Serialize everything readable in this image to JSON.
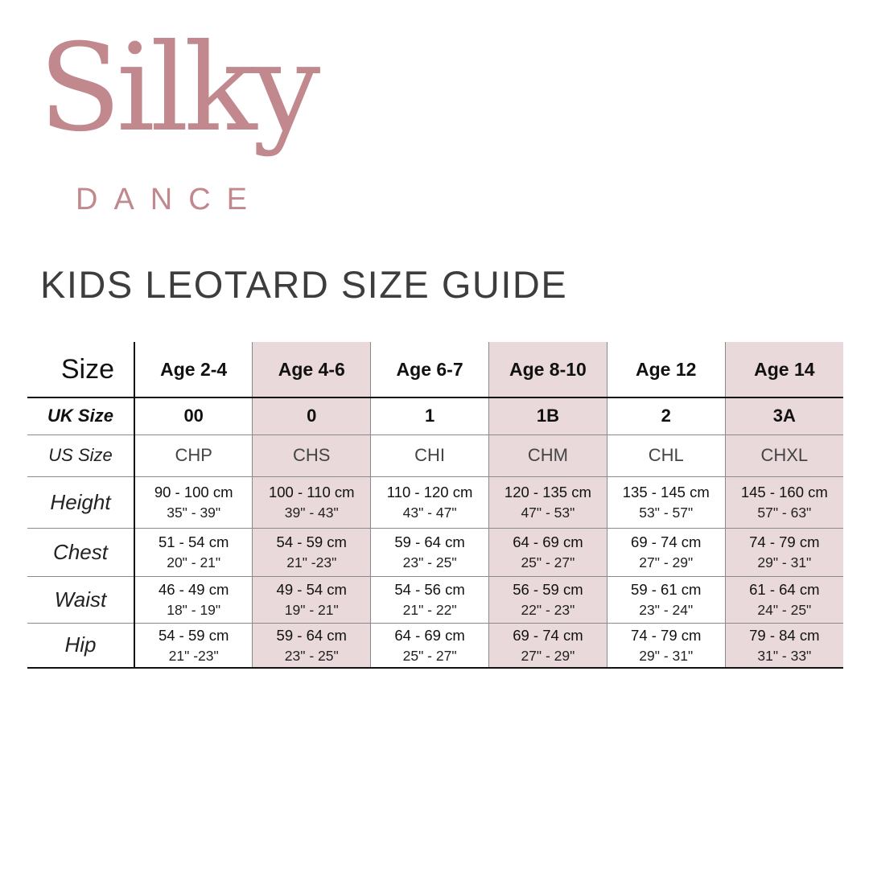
{
  "brand": {
    "name": "Silky",
    "sub": "DANCE",
    "color": "#c1888d"
  },
  "title": "KIDS LEOTARD SIZE GUIDE",
  "table": {
    "corner_label": "Size",
    "columns": [
      "Age 2-4",
      "Age 4-6",
      "Age 6-7",
      "Age 8-10",
      "Age 12",
      "Age 14"
    ],
    "highlight_color": "#ead9da",
    "uk_size": {
      "label": "UK Size",
      "values": [
        "00",
        "0",
        "1",
        "1B",
        "2",
        "3A"
      ]
    },
    "us_size": {
      "label": "US Size",
      "values": [
        "CHP",
        "CHS",
        "CHI",
        "CHM",
        "CHL",
        "CHXL"
      ]
    },
    "height": {
      "label": "Height",
      "cm": [
        "90 - 100 cm",
        "100 - 110 cm",
        "110 - 120 cm",
        "120 - 135 cm",
        "135 - 145 cm",
        "145 - 160 cm"
      ],
      "in": [
        "35\" - 39\"",
        "39\" - 43\"",
        "43\" - 47\"",
        "47\" - 53\"",
        "53\" - 57\"",
        "57\" - 63\""
      ]
    },
    "chest": {
      "label": "Chest",
      "cm": [
        "51 - 54 cm",
        "54 - 59 cm",
        "59 - 64 cm",
        "64 - 69 cm",
        "69 - 74 cm",
        "74 - 79 cm"
      ],
      "in": [
        "20\" - 21\"",
        "21\" -23\"",
        "23\" - 25\"",
        "25\" - 27\"",
        "27\" - 29\"",
        "29\" - 31\""
      ]
    },
    "waist": {
      "label": "Waist",
      "cm": [
        "46 - 49 cm",
        "49 - 54 cm",
        "54 - 56 cm",
        "56 - 59 cm",
        "59 - 61 cm",
        "61 - 64 cm"
      ],
      "in": [
        "18\" - 19\"",
        "19\" - 21\"",
        "21\" - 22\"",
        "22\" - 23\"",
        "23\" - 24\"",
        "24\" - 25\""
      ]
    },
    "hip": {
      "label": "Hip",
      "cm": [
        "54 - 59 cm",
        "59 - 64 cm",
        "64 - 69 cm",
        "69 - 74 cm",
        "74 - 79 cm",
        "79 - 84 cm"
      ],
      "in": [
        "21\" -23\"",
        "23\" - 25\"",
        "25\" - 27\"",
        "27\" - 29\"",
        "29\" - 31\"",
        "31\" - 33\""
      ]
    }
  }
}
